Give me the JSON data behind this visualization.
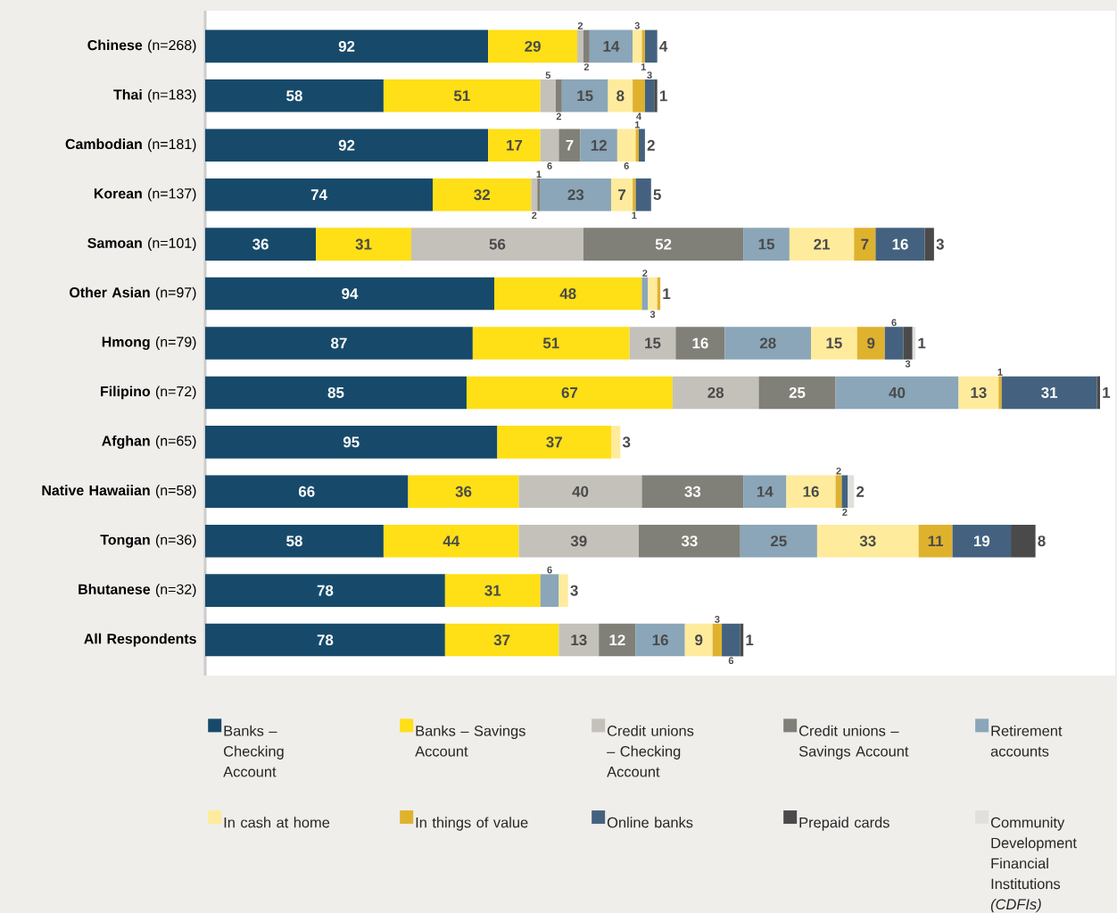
{
  "chart_data": {
    "type": "bar",
    "orientation": "horizontal",
    "stacked": true,
    "data_labels": true,
    "legend": "bottom",
    "categories": [
      "**Chinese** (n=268)",
      "**Thai** (n=183)",
      "**Cambodian** (n=181)",
      "**Korean** (n=137)",
      "**Samoan** (n=101)",
      "**Other Asian** (n=97)",
      "**Hmong** (n=79)",
      "**Filipino** (n=72)",
      "**Afghan** (n=65)",
      "**Native Hawaiian** (n=58)",
      "**Tongan** (n=36)",
      "**Bhutanese** (n=32)",
      "**All Respondents**"
    ],
    "series": [
      {
        "name": "Banks – Checking Account",
        "color": "#174a6a",
        "values": [
          92,
          58,
          92,
          74,
          36,
          94,
          87,
          85,
          95,
          66,
          58,
          78,
          78
        ]
      },
      {
        "name": "Banks – Savings Account",
        "color": "#ffdf16",
        "values": [
          29,
          51,
          17,
          32,
          31,
          48,
          51,
          67,
          37,
          36,
          44,
          31,
          37
        ]
      },
      {
        "name": "Credit unions – Checking Account",
        "color": "#c4c1bb",
        "values": [
          2,
          5,
          6,
          2,
          56,
          null,
          15,
          28,
          null,
          40,
          39,
          null,
          13
        ]
      },
      {
        "name": "Credit unions – Savings Account",
        "color": "#808078",
        "values": [
          2,
          2,
          7,
          1,
          52,
          null,
          16,
          25,
          null,
          33,
          33,
          null,
          12
        ]
      },
      {
        "name": "Retirement accounts",
        "color": "#8aa6b8",
        "values": [
          14,
          15,
          12,
          23,
          15,
          2,
          28,
          40,
          null,
          14,
          25,
          6,
          16
        ]
      },
      {
        "name": "In cash at home",
        "color": "#ffeb9c",
        "values": [
          3,
          8,
          6,
          7,
          21,
          3,
          15,
          13,
          3,
          16,
          33,
          3,
          9
        ]
      },
      {
        "name": "In things of value",
        "color": "#dfb22e",
        "values": [
          1,
          4,
          1,
          1,
          7,
          1,
          9,
          1,
          null,
          2,
          11,
          null,
          3
        ]
      },
      {
        "name": "Online banks",
        "color": "#44627f",
        "values": [
          4,
          3,
          2,
          5,
          16,
          null,
          6,
          31,
          null,
          2,
          19,
          null,
          6
        ]
      },
      {
        "name": "Prepaid cards",
        "color": "#4a4a4a",
        "values": [
          null,
          1,
          null,
          null,
          3,
          null,
          3,
          1,
          null,
          null,
          8,
          null,
          1
        ]
      },
      {
        "name": "Community Development Financial Institutions *(CDFIs)*",
        "color": "#e2e0dd",
        "values": [
          null,
          null,
          null,
          null,
          null,
          null,
          1,
          null,
          null,
          2,
          null,
          null,
          null
        ]
      }
    ]
  }
}
